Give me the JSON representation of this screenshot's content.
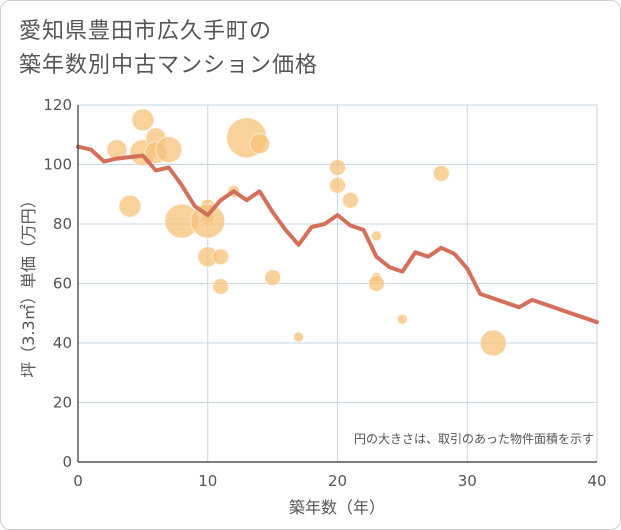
{
  "chart_data": {
    "type": "scatter",
    "title_line1": "愛知県豊田市広久手町の",
    "title_line2": "築年数別中古マンション価格",
    "xlabel": "築年数（年）",
    "ylabel": "坪（3.3㎡）単価（万円）",
    "xlim": [
      0,
      40
    ],
    "ylim": [
      0,
      120
    ],
    "x_ticks": [
      0,
      10,
      20,
      30,
      40
    ],
    "y_ticks": [
      0,
      20,
      40,
      60,
      80,
      100,
      120
    ],
    "x_tick_labels": [
      "0",
      "10",
      "20",
      "30",
      "40"
    ],
    "y_tick_labels": [
      "0",
      "20",
      "40",
      "60",
      "80",
      "100",
      "120"
    ],
    "note": "円の大きさは、取引のあった物件面積を示す",
    "grid": true,
    "colors": {
      "bubble": "#f5c27a",
      "line": "#d4705a",
      "grid": "#c9d6e6"
    },
    "bubbles": [
      {
        "x": 3,
        "y": 105,
        "size": 10
      },
      {
        "x": 4,
        "y": 86,
        "size": 11
      },
      {
        "x": 5,
        "y": 115,
        "size": 11
      },
      {
        "x": 5,
        "y": 104,
        "size": 13
      },
      {
        "x": 6,
        "y": 109,
        "size": 10
      },
      {
        "x": 6,
        "y": 104,
        "size": 11
      },
      {
        "x": 7,
        "y": 105,
        "size": 13
      },
      {
        "x": 8,
        "y": 81,
        "size": 17
      },
      {
        "x": 10,
        "y": 86,
        "size": 7
      },
      {
        "x": 10,
        "y": 82,
        "size": 6
      },
      {
        "x": 10,
        "y": 81,
        "size": 17
      },
      {
        "x": 10,
        "y": 69,
        "size": 10
      },
      {
        "x": 11,
        "y": 69,
        "size": 8
      },
      {
        "x": 11,
        "y": 59,
        "size": 8
      },
      {
        "x": 12,
        "y": 91,
        "size": 6
      },
      {
        "x": 13,
        "y": 109,
        "size": 20
      },
      {
        "x": 14,
        "y": 107,
        "size": 10
      },
      {
        "x": 15,
        "y": 62,
        "size": 8
      },
      {
        "x": 17,
        "y": 42,
        "size": 5
      },
      {
        "x": 20,
        "y": 99,
        "size": 8
      },
      {
        "x": 20,
        "y": 93,
        "size": 8
      },
      {
        "x": 21,
        "y": 88,
        "size": 8
      },
      {
        "x": 23,
        "y": 76,
        "size": 5
      },
      {
        "x": 23,
        "y": 62,
        "size": 5
      },
      {
        "x": 23,
        "y": 60,
        "size": 8
      },
      {
        "x": 25,
        "y": 48,
        "size": 5
      },
      {
        "x": 28,
        "y": 97,
        "size": 8
      },
      {
        "x": 32,
        "y": 40,
        "size": 13
      }
    ],
    "line": {
      "x": [
        0,
        1,
        2,
        3,
        4,
        5,
        6,
        7,
        8,
        9,
        10,
        11,
        12,
        13,
        14,
        15,
        16,
        17,
        18,
        19,
        20,
        21,
        22,
        23,
        24,
        25,
        26,
        27,
        28,
        29,
        30,
        31,
        32,
        33,
        34,
        35,
        36,
        37,
        38,
        39,
        40
      ],
      "y": [
        106,
        105,
        101,
        102,
        102.5,
        103,
        98,
        99,
        93,
        86,
        83,
        88,
        91,
        88,
        91,
        84,
        78,
        73,
        79,
        80,
        83,
        79.5,
        78,
        69,
        65.5,
        64,
        70.5,
        69,
        72,
        70,
        65,
        56.5,
        55,
        53.5,
        52,
        54.5,
        53,
        51.5,
        50,
        48.5,
        47
      ]
    }
  }
}
